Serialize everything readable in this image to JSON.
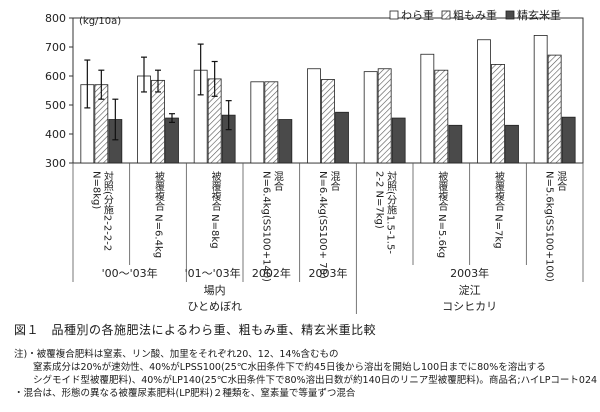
{
  "chart_data": {
    "type": "bar",
    "ylabel": "(kg/10a)",
    "ylim": [
      300,
      800
    ],
    "yticks": [
      300,
      400,
      500,
      600,
      700,
      800
    ],
    "legend_position": "top-right",
    "series": [
      {
        "name": "わら重",
        "fill": "#ffffff",
        "values": [
          570,
          600,
          620,
          580,
          625,
          615,
          675,
          725,
          740
        ]
      },
      {
        "name": "粗もみ重",
        "fill": "hatch",
        "values": [
          570,
          585,
          590,
          580,
          588,
          625,
          620,
          640,
          672
        ]
      },
      {
        "name": "精玄米重",
        "fill": "#4a4a4a",
        "values": [
          450,
          455,
          465,
          450,
          475,
          455,
          430,
          430,
          458
        ]
      }
    ],
    "error_bars": [
      [
        [
          490,
          655
        ],
        [
          520,
          620
        ],
        [
          380,
          520
        ]
      ],
      [
        [
          545,
          665
        ],
        [
          545,
          620
        ],
        [
          440,
          470
        ]
      ],
      [
        [
          535,
          710
        ],
        [
          530,
          650
        ],
        [
          415,
          515
        ]
      ],
      null,
      null,
      null,
      null,
      null,
      null
    ],
    "categories": [
      [
        "対照(分施2-2-2-2",
        "N=8kg)"
      ],
      [
        "被覆複合 N=6.4kg"
      ],
      [
        "被覆複合 N=8kg"
      ],
      [
        "混合",
        "N=6.4kg(SS100+140)"
      ],
      [
        "混合",
        "N=6.4kg(SS100+ 70)"
      ],
      [
        "対照(分施1.5-1.5-",
        "2-2 N=7kg)"
      ],
      [
        "被覆複合 N=5.6kg"
      ],
      [
        "被覆複合 N=7kg"
      ],
      [
        "混合",
        "N=5.6kg(SS100+100)"
      ]
    ],
    "groups_row1": [
      "'00～'03年",
      "'01～'03年",
      "2002年",
      "2003年",
      "2003年"
    ],
    "groups_row2": [
      "場内",
      "淀江"
    ],
    "groups_row3": [
      "ひとめぼれ",
      "コシヒカリ"
    ]
  },
  "caption": "図１　品種別の各施肥法によるわら重、粗もみ重、精玄米重比較",
  "notes": [
    "注)・被覆複合肥料は窒素、リン酸、加里をそれぞれ20、12、14%含むもの",
    "　　窒素成分は20%が速効性、40%がLPSS100(25℃水田条件下で約45日後から溶出を開始し100日までに80%を溶出する",
    "　　シグモイド型被覆肥料)、40%がLP140(25℃水田条件下で80%溶出日数が約140日のリニア型被覆肥料)。商品名;ハイLPコート024",
    "・混合は、形態の異なる被覆尿素肥料(LP肥料)２種類を、窒素量で等量ずつ混合"
  ]
}
